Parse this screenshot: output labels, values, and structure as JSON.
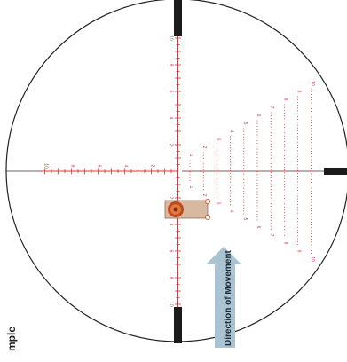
{
  "reticle": {
    "reticle_color": "#e0343a",
    "outline_color": "#222222",
    "post_color": "#1b1b1b",
    "vertical_scale_labels": [
      "10",
      "8",
      "6",
      "4",
      "2",
      "2",
      "4",
      "6",
      "8",
      "10"
    ],
    "horizontal_scale_labels": [
      "10",
      "8",
      "6",
      "4",
      "2"
    ],
    "right_lead_labels": [
      "1",
      "2",
      "3",
      "4",
      "5",
      "6",
      "7",
      "8",
      "9",
      "10"
    ],
    "lower_lead_labels": [
      "1",
      "2",
      "3",
      "4",
      "5",
      "6",
      "7",
      "8",
      "9",
      "10"
    ]
  },
  "target": {
    "icon": "target-icon",
    "plate_color": "#d7b9a2",
    "bullseye_color": "#d45b2a"
  },
  "movement": {
    "label": "Direction of Movement",
    "arrow_color": "#a9c3d2"
  },
  "side_label": "mple"
}
